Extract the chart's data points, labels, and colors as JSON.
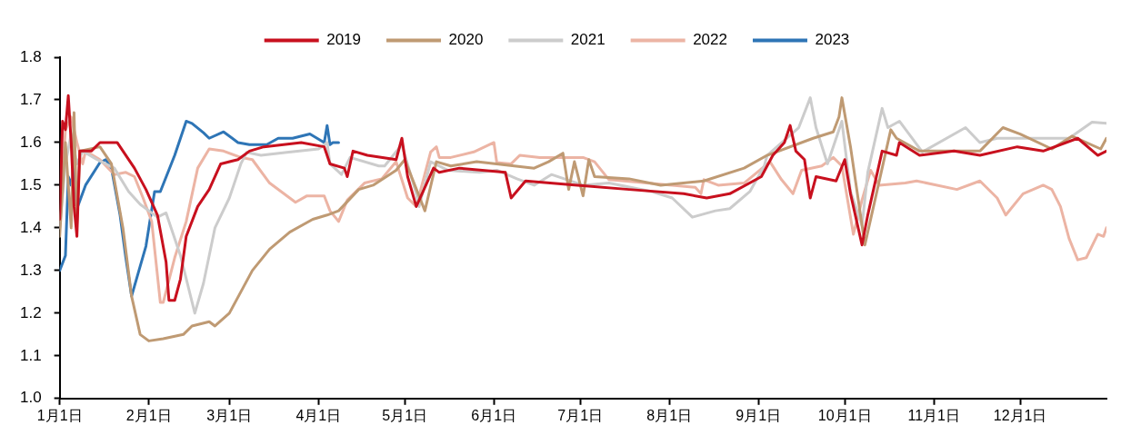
{
  "chart_data": {
    "type": "line",
    "legend": "top",
    "grid": false,
    "marker": "none",
    "line_style": "solid",
    "xlim": [
      "--01-01",
      "--12-31"
    ],
    "xticks": [
      {
        "value": "--01-01",
        "label": "1月1日"
      },
      {
        "value": "--02-01",
        "label": "2月1日"
      },
      {
        "value": "--03-01",
        "label": "3月1日"
      },
      {
        "value": "--04-01",
        "label": "4月1日"
      },
      {
        "value": "--05-01",
        "label": "5月1日"
      },
      {
        "value": "--06-01",
        "label": "6月1日"
      },
      {
        "value": "--07-01",
        "label": "7月1日"
      },
      {
        "value": "--08-01",
        "label": "8月1日"
      },
      {
        "value": "--09-01",
        "label": "9月1日"
      },
      {
        "value": "--10-01",
        "label": "10月1日"
      },
      {
        "value": "--11-01",
        "label": "11月1日"
      },
      {
        "value": "--12-01",
        "label": "12月1日"
      }
    ],
    "ylim": [
      1.0,
      1.8
    ],
    "yticks": [
      {
        "value": 1,
        "label": "1.0"
      },
      1.1,
      1.2,
      1.3,
      1.4,
      1.5,
      1.6,
      1.7,
      1.8
    ],
    "series": [
      {
        "name": "2019",
        "color": "#c8101e",
        "x": [
          "--01-01",
          "--01-02",
          "--01-03",
          "--01-04",
          "--01-05",
          "--01-06",
          "--01-07",
          "--01-08",
          "--01-12",
          "--01-15",
          "--01-21",
          "--01-27",
          "--01-31",
          "--02-04",
          "--02-07",
          "--02-08",
          "--02-10",
          "--02-12",
          "--02-14",
          "--02-18",
          "--02-22",
          "--02-26",
          "--03-04",
          "--03-08",
          "--03-13",
          "--03-26",
          "--04-03",
          "--04-05",
          "--04-10",
          "--04-11",
          "--04-13",
          "--04-18",
          "--04-28",
          "--04-30",
          "--05-02",
          "--05-05",
          "--05-07",
          "--05-11",
          "--05-13",
          "--05-20",
          "--06-05",
          "--06-06",
          "--06-07",
          "--06-12",
          "--06-30",
          "--07-18",
          "--08-06",
          "--08-14",
          "--08-22",
          "--09-02",
          "--09-06",
          "--09-10",
          "--09-12",
          "--09-14",
          "--09-17",
          "--09-19",
          "--09-21",
          "--09-28",
          "--10-01",
          "--10-03",
          "--10-07",
          "--10-09",
          "--10-14",
          "--10-19",
          "--10-20",
          "--10-27",
          "--11-08",
          "--11-17",
          "--11-30",
          "--12-09",
          "--12-21",
          "--12-28",
          "--12-31"
        ],
        "values": [
          1.42,
          1.65,
          1.63,
          1.71,
          1.6,
          1.45,
          1.38,
          1.58,
          1.58,
          1.6,
          1.6,
          1.54,
          1.49,
          1.43,
          1.32,
          1.23,
          1.23,
          1.28,
          1.38,
          1.45,
          1.49,
          1.55,
          1.56,
          1.58,
          1.59,
          1.6,
          1.59,
          1.55,
          1.54,
          1.52,
          1.58,
          1.57,
          1.56,
          1.61,
          1.52,
          1.45,
          1.48,
          1.54,
          1.53,
          1.54,
          1.53,
          1.5,
          1.47,
          1.51,
          1.5,
          1.49,
          1.48,
          1.47,
          1.48,
          1.52,
          1.57,
          1.6,
          1.64,
          1.58,
          1.56,
          1.47,
          1.52,
          1.51,
          1.56,
          1.48,
          1.36,
          1.43,
          1.58,
          1.57,
          1.6,
          1.57,
          1.58,
          1.57,
          1.59,
          1.58,
          1.61,
          1.57,
          1.58
        ]
      },
      {
        "name": "2020",
        "color": "#bf9a73",
        "x": [
          "--01-01",
          "--01-03",
          "--01-05",
          "--01-06",
          "--01-07",
          "--01-08",
          "--01-15",
          "--01-19",
          "--01-23",
          "--01-26",
          "--01-29",
          "--02-01",
          "--02-06",
          "--02-13",
          "--02-16",
          "--02-22",
          "--02-24",
          "--03-01",
          "--03-05",
          "--03-09",
          "--03-15",
          "--03-22",
          "--03-30",
          "--04-04",
          "--04-08",
          "--04-15",
          "--04-20",
          "--04-28",
          "--05-01",
          "--05-08",
          "--05-12",
          "--05-17",
          "--05-26",
          "--06-15",
          "--06-20",
          "--06-25",
          "--06-27",
          "--06-29",
          "--07-02",
          "--07-04",
          "--07-06",
          "--07-18",
          "--07-29",
          "--08-13",
          "--08-27",
          "--09-04",
          "--09-20",
          "--09-27",
          "--09-29",
          "--09-30",
          "--10-03",
          "--10-08",
          "--10-12",
          "--10-17",
          "--10-19",
          "--10-27",
          "--11-17",
          "--11-25",
          "--12-01",
          "--12-12",
          "--12-19",
          "--12-29",
          "--12-31"
        ],
        "values": [
          1.38,
          1.6,
          1.4,
          1.67,
          1.41,
          1.58,
          1.59,
          1.55,
          1.4,
          1.24,
          1.15,
          1.135,
          1.14,
          1.15,
          1.17,
          1.18,
          1.17,
          1.2,
          1.25,
          1.3,
          1.35,
          1.39,
          1.42,
          1.43,
          1.44,
          1.49,
          1.5,
          1.535,
          1.56,
          1.44,
          1.555,
          1.545,
          1.555,
          1.54,
          1.555,
          1.575,
          1.49,
          1.555,
          1.475,
          1.56,
          1.52,
          1.515,
          1.5,
          1.51,
          1.54,
          1.57,
          1.61,
          1.625,
          1.66,
          1.705,
          1.59,
          1.36,
          1.48,
          1.63,
          1.61,
          1.58,
          1.58,
          1.635,
          1.62,
          1.585,
          1.615,
          1.585,
          1.61
        ]
      },
      {
        "name": "2021",
        "color": "#cccccc",
        "x": [
          "--01-01",
          "--01-03",
          "--01-05",
          "--01-07",
          "--01-09",
          "--01-14",
          "--01-20",
          "--01-25",
          "--01-29",
          "--02-04",
          "--02-07",
          "--02-12",
          "--02-17",
          "--02-20",
          "--02-24",
          "--03-01",
          "--03-05",
          "--03-07",
          "--03-12",
          "--03-21",
          "--04-01",
          "--04-04",
          "--04-05",
          "--04-09",
          "--04-12",
          "--04-22",
          "--04-24",
          "--04-30",
          "--05-05",
          "--05-06",
          "--05-10",
          "--05-16",
          "--05-27",
          "--06-02",
          "--06-09",
          "--06-15",
          "--06-21",
          "--07-02",
          "--07-11",
          "--07-26",
          "--08-02",
          "--08-09",
          "--08-17",
          "--08-22",
          "--08-29",
          "--09-03",
          "--09-04",
          "--09-15",
          "--09-19",
          "--09-21",
          "--09-25",
          "--09-30",
          "--10-03",
          "--10-07",
          "--10-09",
          "--10-14",
          "--10-16",
          "--10-20",
          "--10-28",
          "--11-12",
          "--11-17",
          "--11-23",
          "--12-18",
          "--12-26",
          "--12-31"
        ],
        "values": [
          1.4,
          1.55,
          1.62,
          1.55,
          1.58,
          1.56,
          1.54,
          1.485,
          1.455,
          1.425,
          1.435,
          1.335,
          1.2,
          1.27,
          1.4,
          1.47,
          1.55,
          1.577,
          1.57,
          1.577,
          1.585,
          1.6,
          1.55,
          1.525,
          1.565,
          1.545,
          1.545,
          1.595,
          1.48,
          1.45,
          1.555,
          1.535,
          1.53,
          1.535,
          1.515,
          1.5,
          1.525,
          1.5,
          1.505,
          1.485,
          1.47,
          1.425,
          1.44,
          1.445,
          1.485,
          1.545,
          1.57,
          1.635,
          1.705,
          1.635,
          1.55,
          1.65,
          1.485,
          1.405,
          1.53,
          1.68,
          1.635,
          1.65,
          1.578,
          1.635,
          1.6,
          1.61,
          1.61,
          1.648,
          1.645
        ]
      },
      {
        "name": "2022",
        "color": "#ecb4a4",
        "x": [
          "--01-01",
          "--01-03",
          "--01-05",
          "--01-07",
          "--01-09",
          "--01-10",
          "--01-15",
          "--01-20",
          "--01-24",
          "--01-27",
          "--01-30",
          "--02-02",
          "--02-05",
          "--02-06",
          "--02-10",
          "--02-14",
          "--02-18",
          "--02-22",
          "--02-27",
          "--03-05",
          "--03-09",
          "--03-15",
          "--03-24",
          "--03-28",
          "--04-03",
          "--04-05",
          "--04-08",
          "--04-11",
          "--04-17",
          "--04-23",
          "--04-28",
          "--05-02",
          "--05-05",
          "--05-10",
          "--05-12",
          "--05-13",
          "--05-17",
          "--05-25",
          "--06-01",
          "--06-02",
          "--06-07",
          "--06-10",
          "--06-17",
          "--07-02",
          "--07-06",
          "--07-11",
          "--08-02",
          "--08-10",
          "--08-12",
          "--08-13",
          "--08-18",
          "--08-27",
          "--09-05",
          "--09-09",
          "--09-13",
          "--09-16",
          "--09-23",
          "--09-27",
          "--09-30",
          "--10-04",
          "--10-07",
          "--10-10",
          "--10-13",
          "--10-22",
          "--10-26",
          "--11-09",
          "--11-17",
          "--11-23",
          "--11-26",
          "--12-02",
          "--12-09",
          "--12-12",
          "--12-15",
          "--12-18",
          "--12-21",
          "--12-24",
          "--12-28",
          "--12-30",
          "--12-31"
        ],
        "values": [
          1.4,
          1.63,
          1.66,
          1.6,
          1.55,
          1.58,
          1.56,
          1.525,
          1.53,
          1.52,
          1.47,
          1.415,
          1.225,
          1.225,
          1.33,
          1.415,
          1.54,
          1.585,
          1.58,
          1.565,
          1.56,
          1.505,
          1.46,
          1.475,
          1.475,
          1.44,
          1.415,
          1.465,
          1.505,
          1.515,
          1.555,
          1.47,
          1.45,
          1.578,
          1.59,
          1.565,
          1.565,
          1.578,
          1.6,
          1.553,
          1.55,
          1.57,
          1.565,
          1.565,
          1.555,
          1.513,
          1.5,
          1.495,
          1.48,
          1.513,
          1.5,
          1.505,
          1.555,
          1.513,
          1.48,
          1.535,
          1.545,
          1.565,
          1.545,
          1.385,
          1.465,
          1.535,
          1.5,
          1.505,
          1.51,
          1.49,
          1.51,
          1.47,
          1.43,
          1.48,
          1.5,
          1.49,
          1.45,
          1.375,
          1.325,
          1.33,
          1.385,
          1.38,
          1.4
        ]
      },
      {
        "name": "2023",
        "color": "#2e75b6",
        "x": [
          "--01-01",
          "--01-03",
          "--01-04",
          "--01-05",
          "--01-06",
          "--01-07",
          "--01-10",
          "--01-15",
          "--01-17",
          "--01-19",
          "--01-22",
          "--01-24",
          "--01-26",
          "--01-31",
          "--02-03",
          "--02-05",
          "--02-10",
          "--02-14",
          "--02-16",
          "--02-20",
          "--02-22",
          "--02-27",
          "--03-04",
          "--03-08",
          "--03-14",
          "--03-18",
          "--03-23",
          "--03-29",
          "--04-03",
          "--04-04",
          "--04-05",
          "--04-06",
          "--04-08"
        ],
        "values": [
          1.3,
          1.335,
          1.52,
          1.5,
          1.55,
          1.445,
          1.5,
          1.553,
          1.56,
          1.54,
          1.43,
          1.33,
          1.24,
          1.357,
          1.485,
          1.485,
          1.57,
          1.65,
          1.645,
          1.623,
          1.61,
          1.625,
          1.6,
          1.595,
          1.595,
          1.61,
          1.61,
          1.62,
          1.6,
          1.64,
          1.595,
          1.6,
          1.6
        ]
      }
    ]
  }
}
